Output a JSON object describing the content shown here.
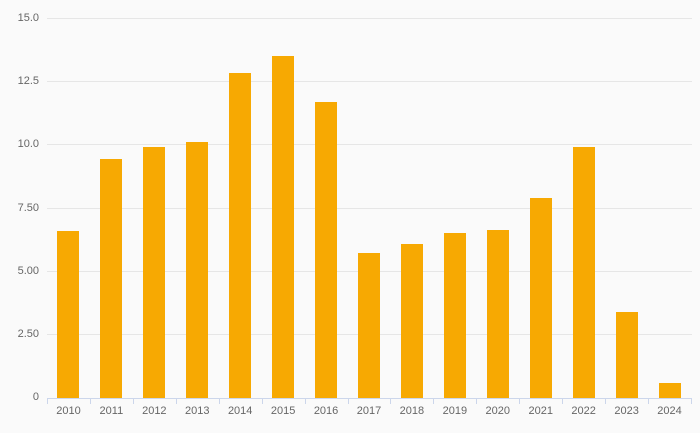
{
  "chart_data": {
    "type": "bar",
    "title": "",
    "xlabel": "",
    "ylabel": "",
    "categories": [
      "2010",
      "2011",
      "2012",
      "2013",
      "2014",
      "2015",
      "2016",
      "2017",
      "2018",
      "2019",
      "2020",
      "2021",
      "2022",
      "2023",
      "2024"
    ],
    "values": [
      6.6,
      9.45,
      9.95,
      10.15,
      12.85,
      13.55,
      11.7,
      5.75,
      6.1,
      6.55,
      6.65,
      7.9,
      9.95,
      3.4,
      0.6
    ],
    "ylim": [
      0,
      15
    ],
    "yticks": [
      0,
      2.5,
      5,
      7.5,
      10,
      12.5,
      15
    ],
    "ytick_labels": [
      "0",
      "2.50",
      "5.00",
      "7.50",
      "10.0",
      "12.5",
      "15.0"
    ],
    "grid": true,
    "legend": "none",
    "colors": {
      "bar": "#f7a902",
      "background": "#fafafa",
      "gridline": "#e6e6e6",
      "axis_line": "#ccd6eb",
      "tick": "#ccd6eb",
      "label": "#666666"
    }
  }
}
